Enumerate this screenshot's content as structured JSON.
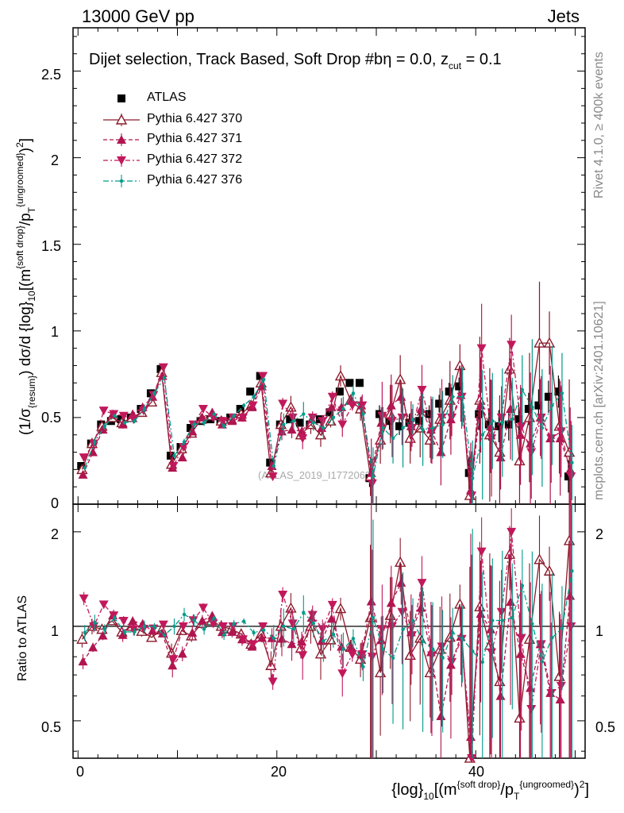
{
  "header": {
    "left": "13000 GeV pp",
    "right": "Jets"
  },
  "side_labels": {
    "rivet": "Rivet 4.1.0, ≥ 400k events",
    "mcplots": "mcplots.cern.ch [arXiv:2401.10621]"
  },
  "chart_data": [
    {
      "panel": "main",
      "type": "scatter",
      "title": "Dijet selection, Track Based, Soft Drop #b",
      "title_eta": "η = 0.0, z",
      "title_cut": "cut",
      "title_z": " = 0.1",
      "watermark": "(ATLAS_2019_I1772062)",
      "ylabel_main": "(1/σ",
      "ylabel_sub": "{resum}",
      "ylabel_mid": ") dσ/d {log}",
      "ylabel_sub2": "10",
      "ylabel_tail": "[(m",
      "ylabel_sup": "{soft drop}",
      "ylabel_tail2": "/p",
      "ylabel_sub3": "T",
      "ylabel_sup2": "{ungroomed}",
      "ylabel_end": ")",
      "ylabel_sup3": "2",
      "ylabel_close": "]",
      "xlim": [
        -0.5,
        51
      ],
      "ylim": [
        0,
        2.75
      ],
      "yticks": [
        "0",
        "0.5",
        "1",
        "1.5",
        "2",
        "2.5"
      ],
      "legend": [
        "ATLAS",
        "Pythia 6.427 370",
        "Pythia 6.427 371",
        "Pythia 6.427 372",
        "Pythia 6.427 376"
      ],
      "x": [
        0.5,
        1.5,
        2.5,
        3.5,
        4.5,
        5.5,
        6.5,
        7.5,
        8.5,
        9.5,
        10.5,
        11.5,
        12.5,
        13.5,
        14.5,
        15.5,
        16.5,
        17.5,
        18.5,
        19.5,
        20.5,
        21.5,
        22.5,
        23.5,
        24.5,
        25.5,
        26.5,
        27.5,
        28.5,
        29.5,
        30.5,
        31.5,
        32.5,
        33.5,
        34.5,
        35.5,
        36.5,
        37.5,
        38.5,
        39.5,
        40.5,
        41.5,
        42.5,
        43.5,
        44.5,
        45.5,
        46.5,
        47.5,
        48.5,
        49.5
      ],
      "series": [
        {
          "name": "ATLAS",
          "color": "#000000",
          "values": [
            0.22,
            0.35,
            0.46,
            0.48,
            0.49,
            0.5,
            0.55,
            0.64,
            0.78,
            0.28,
            0.33,
            0.44,
            0.48,
            0.49,
            0.48,
            0.5,
            0.55,
            0.65,
            0.74,
            0.24,
            0.46,
            0.49,
            0.47,
            0.46,
            0.49,
            0.53,
            0.65,
            0.7,
            0.7,
            0.15,
            0.52,
            0.48,
            0.45,
            0.47,
            0.48,
            0.52,
            0.58,
            0.65,
            0.68,
            0.18,
            0.52,
            0.46,
            0.45,
            0.46,
            0.49,
            0.55,
            0.57,
            0.62,
            0.65,
            0.16
          ]
        },
        {
          "name": "Pythia 6.427 370",
          "color": "#8b1a2b",
          "values": [
            0.2,
            0.35,
            0.45,
            0.5,
            0.47,
            0.5,
            0.53,
            0.59,
            0.76,
            0.23,
            0.32,
            0.41,
            0.49,
            0.51,
            0.48,
            0.49,
            0.52,
            0.57,
            0.7,
            0.18,
            0.46,
            0.56,
            0.4,
            0.46,
            0.4,
            0.48,
            0.74,
            0.6,
            0.55,
            0.16,
            0.37,
            0.52,
            0.72,
            0.38,
            0.44,
            0.37,
            0.49,
            0.6,
            0.8,
            0.05,
            0.6,
            0.4,
            0.3,
            0.78,
            0.25,
            0.5,
            0.93,
            0.93,
            0.45,
            0.3
          ]
        },
        {
          "name": "Pythia 6.427 371",
          "color": "#b0154f",
          "values": [
            0.17,
            0.3,
            0.43,
            0.52,
            0.46,
            0.52,
            0.56,
            0.62,
            0.74,
            0.21,
            0.27,
            0.42,
            0.5,
            0.53,
            0.46,
            0.48,
            0.5,
            0.56,
            0.68,
            0.22,
            0.42,
            0.43,
            0.42,
            0.49,
            0.44,
            0.56,
            0.56,
            0.6,
            0.57,
            0.18,
            0.47,
            0.57,
            0.62,
            0.45,
            0.55,
            0.43,
            0.3,
            0.49,
            0.63,
            0.08,
            0.57,
            0.45,
            0.27,
            0.55,
            0.4,
            0.35,
            0.5,
            0.38,
            0.38,
            0.2
          ]
        },
        {
          "name": "Pythia 6.427 372",
          "color": "#c2185b",
          "values": [
            0.27,
            0.35,
            0.54,
            0.52,
            0.51,
            0.49,
            0.54,
            0.63,
            0.79,
            0.22,
            0.33,
            0.46,
            0.55,
            0.5,
            0.48,
            0.5,
            0.5,
            0.57,
            0.74,
            0.16,
            0.58,
            0.5,
            0.38,
            0.5,
            0.48,
            0.62,
            0.46,
            0.57,
            0.57,
            0.12,
            0.51,
            0.48,
            0.5,
            0.44,
            0.66,
            0.42,
            0.5,
            0.5,
            0.62,
            0.05,
            0.9,
            0.38,
            0.5,
            0.92,
            0.45,
            0.3,
            0.5,
            0.38,
            0.42,
            0.16
          ]
        },
        {
          "name": "Pythia 6.427 376",
          "color": "#009b8a",
          "values": [
            0.21,
            0.36,
            0.45,
            0.51,
            0.47,
            0.48,
            0.55,
            0.64,
            0.73,
            0.28,
            0.36,
            0.46,
            0.47,
            0.52,
            0.45,
            0.51,
            0.57,
            0.62,
            0.72,
            0.22,
            0.46,
            0.48,
            0.52,
            0.47,
            0.44,
            0.5,
            0.55,
            0.64,
            0.52,
            0.16,
            0.44,
            0.38,
            0.44,
            0.49,
            0.43,
            0.44,
            0.46,
            0.62,
            0.62,
            0.15,
            0.4,
            0.48,
            0.47,
            0.49,
            0.66,
            0.56,
            0.44,
            0.57,
            0.64,
            0.24
          ]
        }
      ]
    },
    {
      "panel": "ratio",
      "type": "line",
      "ylabel": "Ratio to ATLAS",
      "xlabel_a": "{log}",
      "xlabel_sub": "10",
      "xlabel_b": "[(m",
      "xlabel_sup": "{soft drop}",
      "xlabel_c": "/p",
      "xlabel_sub2": "T",
      "xlabel_sup2": "{ungroomed}",
      "xlabel_d": ")",
      "xlabel_sup3": "2",
      "xlabel_e": "]",
      "xticks": [
        "0",
        "20",
        "40"
      ],
      "yticks": [
        "0.5",
        "1",
        "2"
      ],
      "ylim": [
        0.38,
        2.45
      ],
      "scale": "log"
    }
  ]
}
